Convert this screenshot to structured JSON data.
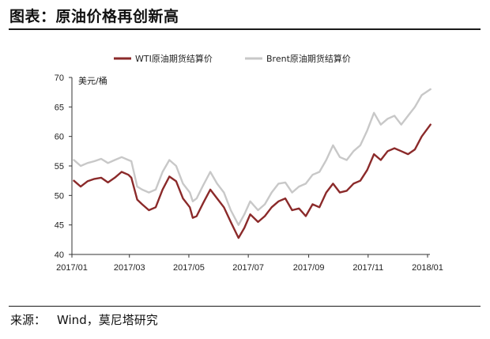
{
  "header": {
    "title": "图表：原油价格再创新高"
  },
  "footer": {
    "source_label": "来源：",
    "source_value": "Wind，莫尼塔研究"
  },
  "chart_data": {
    "type": "line",
    "title": "",
    "xlabel": "",
    "ylabel": "美元/桶",
    "ylim": [
      40,
      70
    ],
    "yticks": [
      "70",
      "65",
      "60",
      "55",
      "50",
      "45",
      "40"
    ],
    "xticks": [
      "2017/01",
      "2017/03",
      "2017/05",
      "2017/07",
      "2017/09",
      "2017/11",
      "2018/01"
    ],
    "grid": false,
    "legend": "top-center",
    "colors": {
      "WTI原油期货结算价": "#8b2a2a",
      "Brent原油期货结算价": "#c8c8c8"
    },
    "series": [
      {
        "name": "WTI原油期货结算价",
        "x": [
          "2017-01-03",
          "2017-01-10",
          "2017-01-17",
          "2017-01-24",
          "2017-01-31",
          "2017-02-07",
          "2017-02-14",
          "2017-02-21",
          "2017-02-28",
          "2017-03-03",
          "2017-03-09",
          "2017-03-14",
          "2017-03-21",
          "2017-03-28",
          "2017-04-04",
          "2017-04-11",
          "2017-04-18",
          "2017-04-25",
          "2017-05-02",
          "2017-05-05",
          "2017-05-09",
          "2017-05-16",
          "2017-05-23",
          "2017-05-30",
          "2017-06-06",
          "2017-06-13",
          "2017-06-21",
          "2017-06-27",
          "2017-07-03",
          "2017-07-11",
          "2017-07-18",
          "2017-07-25",
          "2017-08-01",
          "2017-08-08",
          "2017-08-15",
          "2017-08-22",
          "2017-08-29",
          "2017-09-05",
          "2017-09-12",
          "2017-09-19",
          "2017-09-26",
          "2017-10-03",
          "2017-10-10",
          "2017-10-17",
          "2017-10-24",
          "2017-10-31",
          "2017-11-07",
          "2017-11-14",
          "2017-11-21",
          "2017-11-28",
          "2017-12-05",
          "2017-12-12",
          "2017-12-19",
          "2017-12-26",
          "2018-01-04"
        ],
        "values": [
          52.5,
          51.5,
          52.4,
          52.8,
          53.0,
          52.2,
          53.0,
          54.0,
          53.5,
          53.0,
          49.3,
          48.5,
          47.5,
          48.0,
          51.0,
          53.2,
          52.4,
          49.5,
          48.0,
          46.2,
          46.5,
          48.8,
          51.0,
          49.5,
          48.0,
          45.5,
          42.8,
          44.5,
          46.8,
          45.5,
          46.5,
          48.0,
          49.0,
          49.5,
          47.5,
          47.8,
          46.5,
          48.5,
          48.0,
          50.5,
          52.0,
          50.5,
          50.8,
          52.0,
          52.5,
          54.3,
          57.0,
          56.0,
          57.5,
          58.0,
          57.5,
          57.0,
          57.8,
          60.0,
          62.0
        ]
      },
      {
        "name": "Brent原油期货结算价",
        "x": [
          "2017-01-03",
          "2017-01-10",
          "2017-01-17",
          "2017-01-24",
          "2017-01-31",
          "2017-02-07",
          "2017-02-14",
          "2017-02-21",
          "2017-02-28",
          "2017-03-03",
          "2017-03-09",
          "2017-03-14",
          "2017-03-21",
          "2017-03-28",
          "2017-04-04",
          "2017-04-11",
          "2017-04-18",
          "2017-04-25",
          "2017-05-02",
          "2017-05-05",
          "2017-05-09",
          "2017-05-16",
          "2017-05-23",
          "2017-05-30",
          "2017-06-06",
          "2017-06-13",
          "2017-06-21",
          "2017-06-27",
          "2017-07-03",
          "2017-07-11",
          "2017-07-18",
          "2017-07-25",
          "2017-08-01",
          "2017-08-08",
          "2017-08-15",
          "2017-08-22",
          "2017-08-29",
          "2017-09-05",
          "2017-09-12",
          "2017-09-19",
          "2017-09-26",
          "2017-10-03",
          "2017-10-10",
          "2017-10-17",
          "2017-10-24",
          "2017-10-31",
          "2017-11-07",
          "2017-11-14",
          "2017-11-21",
          "2017-11-28",
          "2017-12-05",
          "2017-12-12",
          "2017-12-19",
          "2017-12-26",
          "2018-01-04"
        ],
        "values": [
          56.0,
          55.0,
          55.5,
          55.8,
          56.2,
          55.5,
          56.0,
          56.5,
          56.0,
          55.8,
          51.5,
          51.0,
          50.5,
          51.0,
          54.0,
          56.0,
          55.0,
          52.0,
          50.5,
          49.0,
          49.5,
          51.8,
          54.0,
          52.0,
          50.5,
          47.5,
          45.0,
          46.8,
          49.0,
          47.5,
          48.5,
          50.5,
          52.0,
          52.2,
          50.5,
          51.5,
          52.0,
          53.5,
          54.0,
          56.0,
          58.5,
          56.5,
          56.0,
          57.5,
          58.5,
          61.0,
          64.0,
          62.0,
          63.0,
          63.5,
          62.0,
          63.5,
          65.0,
          67.0,
          68.0
        ]
      }
    ]
  }
}
